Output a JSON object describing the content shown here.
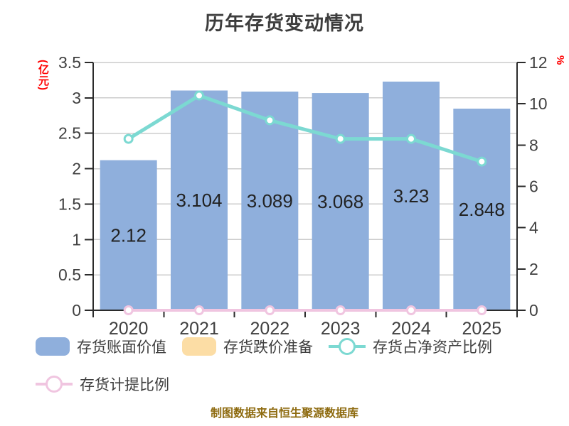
{
  "chart_data": {
    "type": "combo",
    "title": "历年存货变动情况",
    "caption": "制图数据来自恒生聚源数据库",
    "categories": [
      "2020",
      "2021",
      "2022",
      "2023",
      "2024",
      "2025"
    ],
    "series": [
      {
        "name": "存货账面价值",
        "type": "bar",
        "axis": "left",
        "color": "#8FAFDC",
        "values": [
          2.12,
          3.104,
          3.089,
          3.068,
          3.23,
          2.848
        ],
        "labels": [
          "2.12",
          "3.104",
          "3.089",
          "3.068",
          "3.23",
          "2.848"
        ]
      },
      {
        "name": "存货跌价准备",
        "type": "bar",
        "axis": "left",
        "color": "#FCDDA5",
        "values": [
          0,
          0,
          0,
          0,
          0,
          0
        ]
      },
      {
        "name": "存货占净资产比例",
        "type": "line",
        "axis": "right",
        "color": "#7CD9D2",
        "values": [
          8.3,
          10.4,
          9.2,
          8.3,
          8.3,
          7.2
        ]
      },
      {
        "name": "存货计提比例",
        "type": "line",
        "axis": "right",
        "color": "#F0C5E0",
        "values": [
          0,
          0,
          0,
          0,
          0,
          0
        ]
      }
    ],
    "left_axis": {
      "label": "(亿元)",
      "min": 0,
      "max": 3.5,
      "step": 0.5,
      "ticks": [
        "0",
        "0.5",
        "1",
        "1.5",
        "2",
        "2.5",
        "3",
        "3.5"
      ]
    },
    "right_axis": {
      "label": "%",
      "min": 0,
      "max": 12,
      "step": 2,
      "ticks": [
        "0",
        "2",
        "4",
        "6",
        "8",
        "10",
        "12"
      ]
    },
    "grid": "horizontal",
    "legend_position": "bottom-left"
  },
  "colors": {
    "background": "#FFFFFF",
    "title_text": "#3D3D3D",
    "axis_text": "#404040",
    "bar_label_text": "#222222",
    "grid_line": "#CCCCCC",
    "axis_line": "#2B2B2B",
    "unit_label": "#FF0000",
    "source_note": "#8E6B10"
  }
}
